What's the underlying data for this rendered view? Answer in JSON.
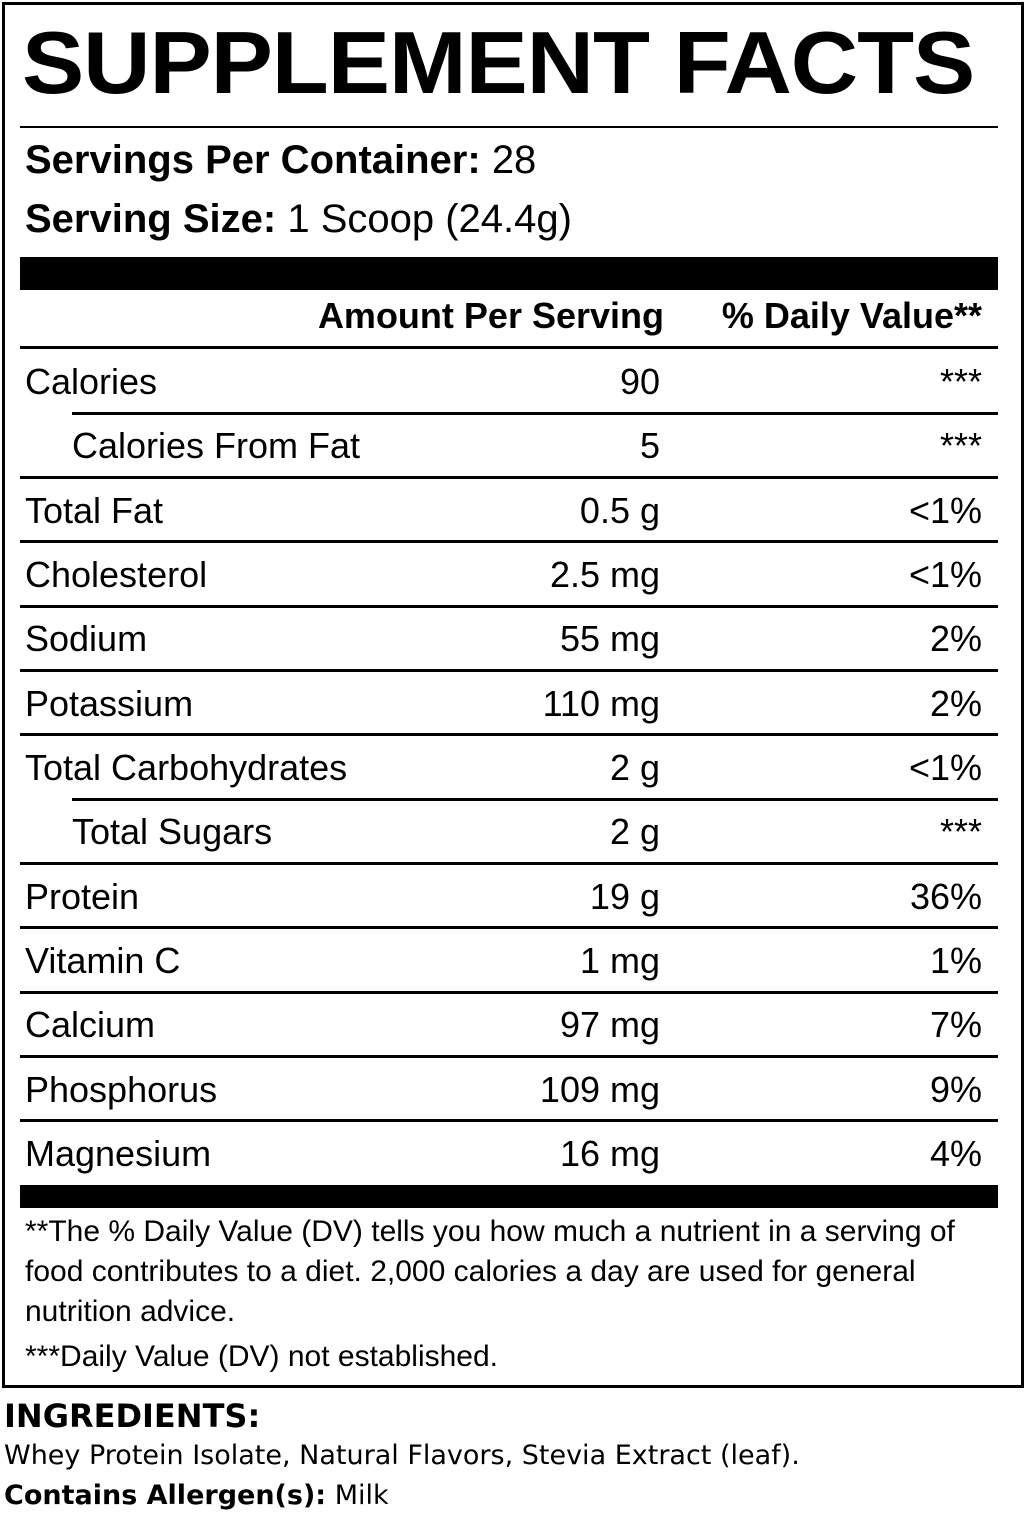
{
  "title": "SUPPLEMENT FACTS",
  "servings": {
    "label": "Servings Per Container:",
    "value": "28"
  },
  "serving_size": {
    "label": "Serving Size:",
    "value": "1 Scoop (24.4g)"
  },
  "table": {
    "header": [
      "Amount Per Serving",
      "% Daily Value**"
    ],
    "rows": [
      {
        "name": "Calories",
        "amount": "90",
        "dv": "***",
        "indent": false
      },
      {
        "name": "Calories From Fat",
        "amount": "5",
        "dv": "***",
        "indent": true
      },
      {
        "name": "Total Fat",
        "amount": "0.5 g",
        "dv": "<1%",
        "indent": false
      },
      {
        "name": "Cholesterol",
        "amount": "2.5 mg",
        "dv": "<1%",
        "indent": false
      },
      {
        "name": "Sodium",
        "amount": "55 mg",
        "dv": "2%",
        "indent": false
      },
      {
        "name": "Potassium",
        "amount": "110 mg",
        "dv": "2%",
        "indent": false
      },
      {
        "name": "Total Carbohydrates",
        "amount": "2 g",
        "dv": "<1%",
        "indent": false
      },
      {
        "name": "Total Sugars",
        "amount": "2 g",
        "dv": "***",
        "indent": true
      },
      {
        "name": "Protein",
        "amount": "19 g",
        "dv": "36%",
        "indent": false
      },
      {
        "name": "Vitamin C",
        "amount": "1 mg",
        "dv": "1%",
        "indent": false
      },
      {
        "name": "Calcium",
        "amount": "97 mg",
        "dv": "7%",
        "indent": false
      },
      {
        "name": "Phosphorus",
        "amount": "109 mg",
        "dv": "9%",
        "indent": false
      },
      {
        "name": "Magnesium",
        "amount": "16 mg",
        "dv": "4%",
        "indent": false
      }
    ]
  },
  "footnotes": [
    "**The % Daily Value (DV) tells you how much a nutrient in a serving of food contributes to a diet. 2,000 calories a day are used for general nutrition advice.",
    "***Daily Value (DV) not established."
  ],
  "ingredients": {
    "heading": "INGREDIENTS:",
    "text": "Whey Protein Isolate, Natural Flavors, Stevia Extract (leaf).",
    "allergen_label": "Contains Allergen(s):",
    "allergen_value": "Milk"
  }
}
